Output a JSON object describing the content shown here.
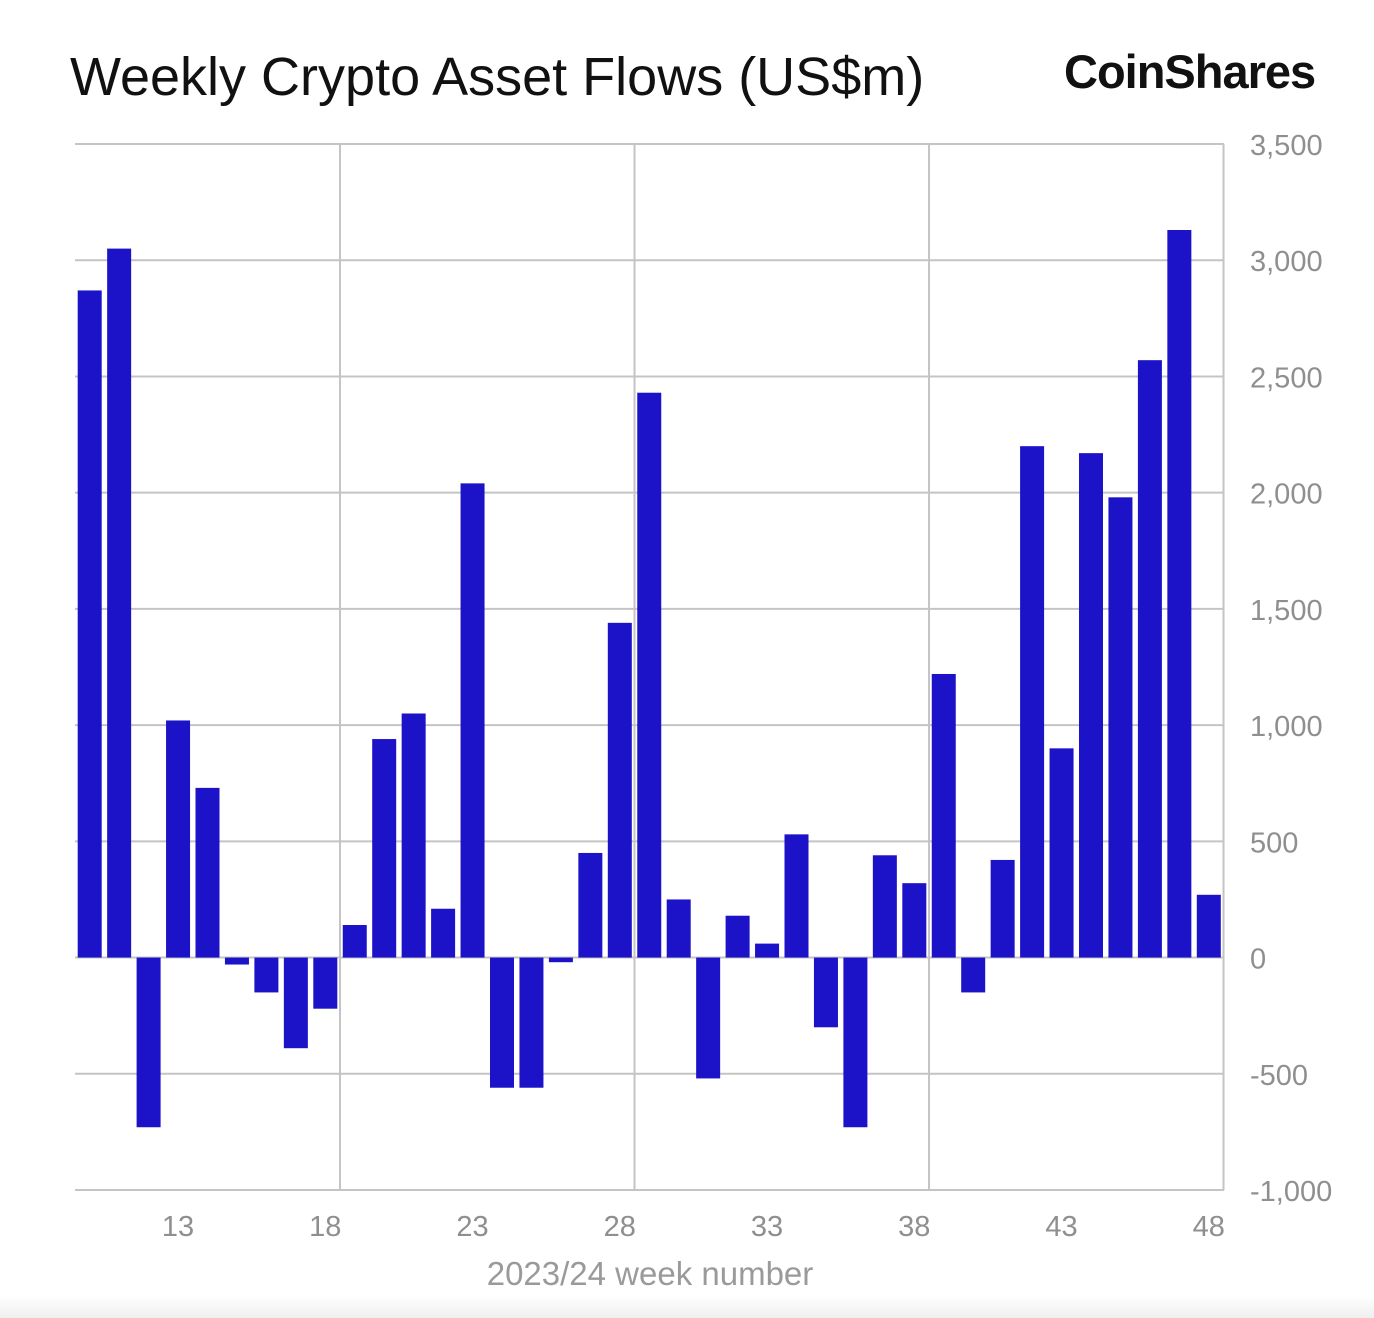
{
  "title": "Weekly Crypto Asset Flows (US$m)",
  "brand": "CoinShares",
  "colors": {
    "bar": "#1c12c8",
    "grid": "#c4c4c4",
    "axis_text": "#8f8f8f",
    "title": "#111111"
  },
  "chart_data": {
    "type": "bar",
    "title": "Weekly Crypto Asset Flows (US$m)",
    "xlabel": "2023/24 week number",
    "ylabel": "",
    "ylim": [
      -1000,
      3500
    ],
    "yticks": [
      3500,
      3000,
      2500,
      2000,
      1500,
      1000,
      500,
      0,
      -500,
      -1000
    ],
    "ytick_labels": [
      "3,500",
      "3,000",
      "2,500",
      "2,000",
      "1,500",
      "1,000",
      "500",
      "0",
      "-500",
      "-1,000"
    ],
    "xtick_labels": [
      "13",
      "18",
      "23",
      "28",
      "33",
      "38",
      "43",
      "48"
    ],
    "xtick_weeks": [
      13,
      18,
      23,
      28,
      33,
      38,
      43,
      48
    ],
    "x_grid_weeks": [
      18.5,
      28.5,
      38.5,
      48.5
    ],
    "categories": [
      10,
      11,
      12,
      13,
      14,
      15,
      16,
      17,
      18,
      19,
      20,
      21,
      22,
      23,
      24,
      25,
      26,
      27,
      28,
      29,
      30,
      31,
      32,
      33,
      34,
      35,
      36,
      37,
      38,
      39,
      40,
      41,
      42,
      43,
      44,
      45,
      46,
      47,
      48
    ],
    "values": [
      2870,
      3050,
      -730,
      1020,
      730,
      -30,
      -150,
      -390,
      -220,
      140,
      940,
      1050,
      210,
      2040,
      -560,
      -560,
      -20,
      450,
      1440,
      2430,
      250,
      -520,
      180,
      60,
      530,
      -300,
      -730,
      440,
      320,
      1220,
      -150,
      420,
      2200,
      900,
      2170,
      1980,
      2570,
      3130,
      270
    ],
    "grid": true,
    "legend": "none"
  }
}
